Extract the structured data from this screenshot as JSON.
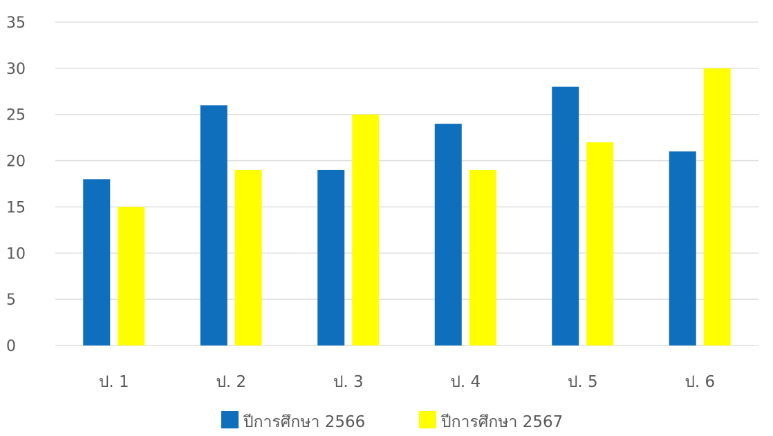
{
  "chart_data": {
    "type": "bar",
    "title": "",
    "xlabel": "",
    "ylabel": "",
    "categories": [
      "ป. 1",
      "ป. 2",
      "ป. 3",
      "ป. 4",
      "ป. 5",
      "ป. 6"
    ],
    "series": [
      {
        "name": "ปีการศึกษา 2566",
        "color": "#0f6fbd",
        "values": [
          18,
          26,
          19,
          24,
          28,
          21
        ]
      },
      {
        "name": "ปีการศึกษา 2567",
        "color": "#ffff00",
        "values": [
          15,
          19,
          25,
          19,
          22,
          30
        ]
      }
    ],
    "ylim": [
      0,
      35
    ],
    "yticks": [
      "0",
      "5",
      "10",
      "15",
      "20",
      "25",
      "30",
      "35"
    ],
    "grid": true,
    "legend_position": "bottom-center"
  }
}
